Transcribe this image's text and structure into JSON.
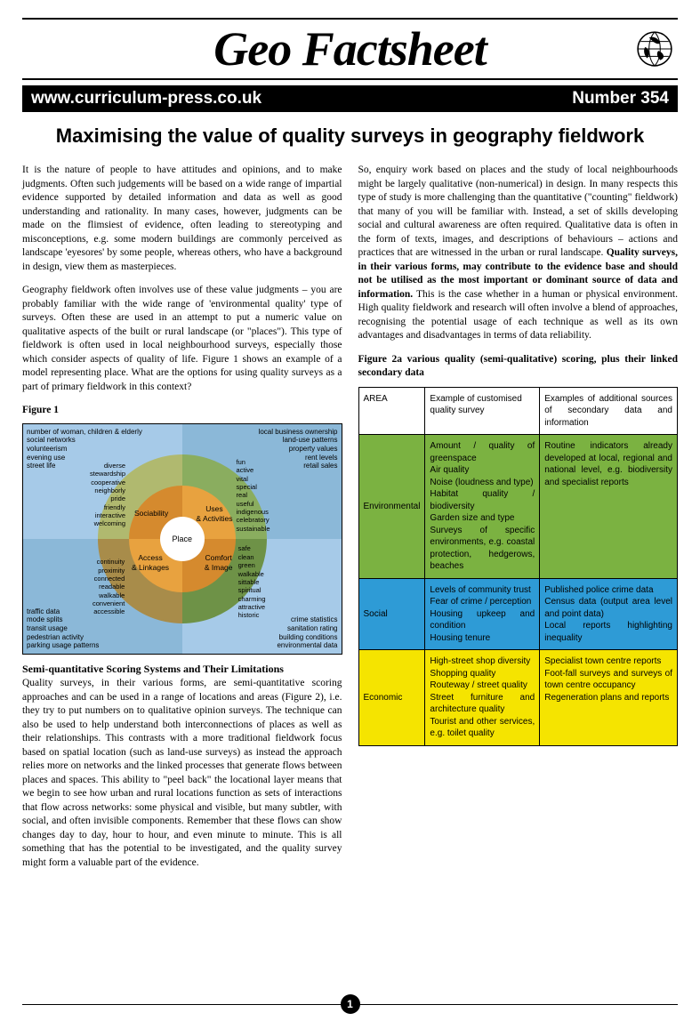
{
  "masthead": {
    "title": "Geo Factsheet"
  },
  "infobar": {
    "url": "www.curriculum-press.co.uk",
    "number": "Number 354"
  },
  "article": {
    "title": "Maximising the value of quality surveys in geography fieldwork"
  },
  "col1": {
    "p1": "It is the nature of people to have attitudes and opinions, and to make judgments. Often such judgements will be based on a wide range of impartial evidence supported by detailed information and data as well as good understanding and rationality. In many cases, however, judgments can be made on the flimsiest of evidence, often leading to stereotyping and misconceptions, e.g. some modern buildings are commonly perceived as landscape 'eyesores' by some people, whereas others, who have a background in design, view them as masterpieces.",
    "p2": "Geography fieldwork often involves use of these value judgments – you are probably familiar with the wide range of 'environmental quality' type of surveys. Often these are used in an attempt to put a numeric value on qualitative aspects of the built or rural landscape (or \"places\"). This type of fieldwork is often used in local neighbourhood surveys, especially those which consider aspects of quality of life. Figure 1 shows an example of a model representing place. What are the options for using quality surveys as a part of primary fieldwork in this context?",
    "fig1_label": "Figure 1",
    "sec_heading": "Semi-quantitative Scoring Systems and Their Limitations",
    "p3": "Quality surveys, in their various forms, are semi-quantitative scoring approaches and can be used in a range of locations and areas (Figure 2), i.e. they try to put numbers on to qualitative opinion surveys. The technique can also be used to help understand both interconnections of places as well as their relationships. This contrasts with a more traditional fieldwork focus based on spatial location (such as land-use surveys) as instead the approach relies more on networks and the linked processes that generate flows between places and spaces. This ability to \"peel back\" the locational layer means that we begin to see how urban and rural locations function as sets of interactions that flow across networks: some physical and visible, but many subtler, with social, and often invisible components. Remember that these flows can show changes day to day, hour to hour, and even minute to minute. This is all something that has the potential to be investigated, and the quality survey might form a valuable part of the evidence."
  },
  "col2": {
    "p1a": "So, enquiry work based on places and the study of local neighbourhoods might be largely qualitative (non-numerical) in design. In many respects this type of study is more challenging than the quantitative (\"counting\" fieldwork) that many of you will be familiar with. Instead, a set of skills developing social and cultural awareness are often required. Qualitative data is often in the form of texts, images, and descriptions of behaviours – actions and practices that are witnessed in the urban or rural landscape. ",
    "p1b": "Quality surveys, in their various forms, may contribute to the evidence base and should not be utilised as the most important or dominant source of data and information.",
    "p1c": " This is the case whether in a human or physical environment. High quality fieldwork and research will often involve a blend of approaches, recognising the potential usage of each technique as well as its own advantages and disadvantages in terms of data reliability.",
    "fig2_caption": "Figure 2a various quality (semi-qualitative) scoring, plus their linked secondary data"
  },
  "diagram": {
    "center": "Place",
    "ring_mid": {
      "tl": "Sociability",
      "tr": "Uses\n& Activities",
      "bl": "Access\n& Linkages",
      "br": "Comfort\n& Image"
    },
    "ring_outer": {
      "tl": "diverse\nstewardship\ncooperative\nneighborly\npride\nfriendly\ninteractive\nwelcoming",
      "tr": "fun\nactive\nvital\nspecial\nreal\nuseful\nindigenous\ncelebratory\nsustainable",
      "bl": "continuity\nproximity\nconnected\nreadable\nwalkable\nconvenient\naccessible",
      "br": "safe\nclean\ngreen\nwalkable\nsittable\nspiritual\ncharming\nattractive\nhistoric"
    },
    "corners": {
      "tl": "number of woman, children & elderly\nsocial networks\nvolunteerism\nevening use\nstreet life",
      "tr": "local business ownership\nland-use patterns\nproperty values\nrent levels\nretail sales",
      "bl": "traffic data\nmode splits\ntransit usage\npedestrian activity\nparking usage patterns",
      "br": "crime statistics\nsanitation rating\nbuilding conditions\nenvironmental data"
    }
  },
  "table": {
    "headers": {
      "c1": "AREA",
      "c2": "Example of customised quality survey",
      "c3": "Examples of additional sources of secondary data and information"
    },
    "rows": [
      {
        "area": "Environmental",
        "c2": "Amount / quality of greenspace\nAir quality\nNoise (loudness and type)\nHabitat quality / biodiversity\nGarden size and type\nSurveys of specific environments, e.g. coastal protection, hedgerows, beaches",
        "c3": "Routine indicators already developed at local, regional and national level, e.g. biodiversity and specialist reports",
        "class": "row-env"
      },
      {
        "area": "Social",
        "c2": "Levels of community trust\nFear of crime / perception\nHousing upkeep and condition\nHousing tenure",
        "c3": "Published police crime data\nCensus data (output area level and point data)\nLocal reports highlighting inequality",
        "class": "row-soc"
      },
      {
        "area": "Economic",
        "c2": "High-street shop diversity\nShopping quality\nRouteway / street quality\nStreet furniture and architecture quality\nTourist and other services, e.g. toilet quality",
        "c3": "Specialist town centre reports\nFoot-fall surveys and surveys of town centre occupancy\nRegeneration plans and reports",
        "class": "row-eco"
      }
    ]
  },
  "page_number": "1"
}
